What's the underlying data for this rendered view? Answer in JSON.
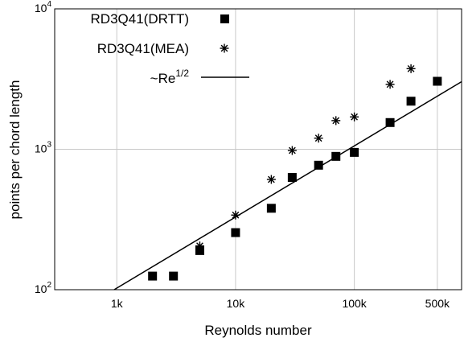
{
  "chart_data": {
    "type": "scatter",
    "xscale": "log",
    "yscale": "log",
    "xlim": [
      300,
      800000
    ],
    "ylim": [
      100,
      10000
    ],
    "xlabel": "Reynolds number",
    "ylabel": "points per chord length",
    "grid": true,
    "legend_position": "top-left",
    "x_ticks": [
      {
        "value": 1000,
        "label": "1k"
      },
      {
        "value": 10000,
        "label": "10k"
      },
      {
        "value": 100000,
        "label": "100k"
      },
      {
        "value": 500000,
        "label": "500k"
      }
    ],
    "y_ticks": [
      {
        "value": 100,
        "base": "10",
        "exp": "2"
      },
      {
        "value": 1000,
        "base": "10",
        "exp": "3"
      },
      {
        "value": 10000,
        "base": "10",
        "exp": "4"
      }
    ],
    "series": [
      {
        "name": "RD3Q41(DRTT)",
        "marker": "square",
        "x": [
          2000,
          3000,
          5000,
          10000,
          20000,
          30000,
          50000,
          70000,
          100000,
          200000,
          300000,
          500000
        ],
        "y": [
          125,
          125,
          190,
          255,
          380,
          630,
          770,
          890,
          950,
          1550,
          2200,
          3050
        ]
      },
      {
        "name": "RD3Q41(MEA)",
        "marker": "asterisk",
        "x": [
          5000,
          10000,
          20000,
          30000,
          50000,
          70000,
          100000,
          200000,
          300000
        ],
        "y": [
          205,
          340,
          610,
          980,
          1200,
          1600,
          1700,
          2900,
          3750
        ]
      },
      {
        "name": "~Re",
        "name_superscript": "1/2",
        "marker": "line",
        "x": [
          950,
          800000
        ],
        "y": [
          100,
          3030
        ]
      }
    ]
  }
}
